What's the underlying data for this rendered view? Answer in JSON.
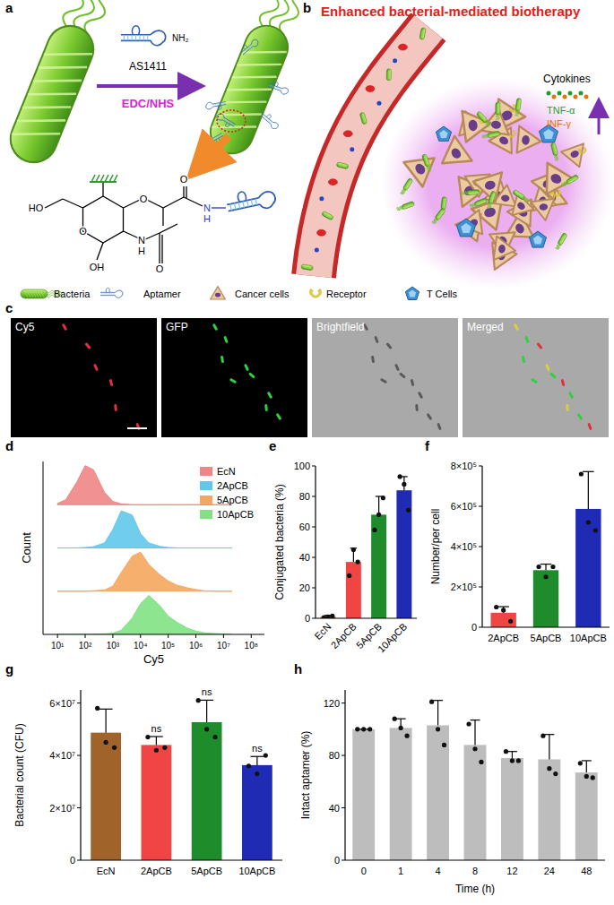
{
  "panel_labels": [
    "a",
    "b",
    "c",
    "d",
    "e",
    "f",
    "g",
    "h"
  ],
  "panel_a": {
    "aptamer_name": "AS1411",
    "amine": "NH₂",
    "reagent": "EDC/NHS",
    "structure_atoms": [
      "HO",
      "O",
      "OH",
      "N",
      "H",
      "O",
      "O",
      "O",
      "N",
      "H"
    ]
  },
  "icon_legend": [
    "Bacteria",
    "Aptamer",
    "Cancer cells",
    "Receptor",
    "T Cells"
  ],
  "panel_b": {
    "title": "Enhanced bacterial-mediated biotherapy",
    "cytokines_label": "Cytokines",
    "cytokines": [
      {
        "name": "TNF-α",
        "color": "#1f9e2c"
      },
      {
        "name": "INF-γ",
        "color": "#e5740b"
      }
    ]
  },
  "panel_c": {
    "channels": [
      "Cy5",
      "GFP",
      "Brightfield",
      "Merged"
    ]
  },
  "chart_data": [
    {
      "type": "area",
      "x_label": "Cy5",
      "y_label": "Count",
      "log": "x",
      "tick_labels": "x",
      "legend": "upper right",
      "xlim": [
        3,
        300000000
      ],
      "xticks": [
        {
          "value": 10,
          "label": "10¹"
        },
        {
          "value": 100,
          "label": "10²"
        },
        {
          "value": 1000,
          "label": "10³"
        },
        {
          "value": 10000,
          "label": "10⁴"
        },
        {
          "value": 100000,
          "label": "10⁵"
        },
        {
          "value": 1000000,
          "label": "10⁶"
        },
        {
          "value": 10000000,
          "label": "10⁷"
        },
        {
          "value": 100000000,
          "label": "10⁸"
        }
      ],
      "ylim": [
        0,
        100
      ],
      "x": [
        10,
        20,
        50,
        100,
        200,
        500,
        1000,
        2000,
        5000,
        10000,
        20000,
        50000,
        100000,
        200000,
        500000,
        1000000,
        2000000,
        5000000,
        10000000,
        20000000
      ],
      "series": [
        {
          "name": "EcN",
          "color": "#f08585",
          "values": [
            3,
            12,
            55,
            95,
            85,
            30,
            8,
            2,
            0,
            0,
            0,
            0,
            0,
            0,
            0,
            0,
            0,
            0,
            0,
            0
          ]
        },
        {
          "name": "2ApCB",
          "color": "#62c8ea",
          "values": [
            0,
            0,
            0,
            1,
            3,
            12,
            45,
            90,
            80,
            35,
            12,
            4,
            1,
            0,
            0,
            0,
            0,
            0,
            0,
            0
          ]
        },
        {
          "name": "5ApCB",
          "color": "#f6a65e",
          "values": [
            0,
            0,
            0,
            0,
            1,
            3,
            12,
            45,
            85,
            95,
            65,
            40,
            25,
            15,
            8,
            4,
            1,
            0,
            0,
            0
          ]
        },
        {
          "name": "10ApCB",
          "color": "#82e283",
          "values": [
            0,
            0,
            0,
            0,
            0,
            1,
            3,
            10,
            40,
            75,
            95,
            70,
            45,
            30,
            15,
            8,
            4,
            2,
            1,
            0
          ]
        }
      ]
    },
    {
      "type": "bar",
      "y_label": "Conjugated bacteria (%)",
      "categories": [
        "EcN",
        "2ApCB",
        "5ApCB",
        "10ApCB"
      ],
      "values": [
        1,
        37,
        68,
        84
      ],
      "errors": [
        1,
        9,
        12,
        9
      ],
      "replicates": [
        [
          0.5,
          1,
          1.5
        ],
        [
          28,
          45,
          37
        ],
        [
          58,
          68,
          79
        ],
        [
          93,
          88,
          71
        ]
      ],
      "colors": [
        "#b5651d",
        "#f04545",
        "#1e8c2a",
        "#1f2bb5"
      ],
      "ylim": [
        0,
        100
      ],
      "yticks": [
        0,
        20,
        40,
        60,
        80,
        100
      ]
    },
    {
      "type": "bar",
      "y_label": "Number/per cell",
      "categories": [
        "2ApCB",
        "5ApCB",
        "10ApCB"
      ],
      "values": [
        72000,
        283000,
        587000
      ],
      "errors": [
        30000,
        30000,
        185000
      ],
      "replicates": [
        [
          100000,
          85000,
          30000
        ],
        [
          300000,
          250000,
          300000
        ],
        [
          760000,
          520000,
          480000
        ]
      ],
      "colors": [
        "#f04545",
        "#1e8c2a",
        "#1f2bb5"
      ],
      "ylim": [
        0,
        800000
      ],
      "yticks": [
        0,
        {
          "value": 200000,
          "label": "2×10⁵"
        },
        {
          "value": 400000,
          "label": "4×10⁵"
        },
        {
          "value": 600000,
          "label": "6×10⁵"
        },
        {
          "value": 800000,
          "label": "8×10⁵"
        }
      ]
    },
    {
      "type": "bar",
      "y_label": "Bacterial count (CFU)",
      "categories": [
        "EcN",
        "2ApCB",
        "5ApCB",
        "10ApCB"
      ],
      "values": [
        48700000,
        44000000,
        52700000,
        36300000
      ],
      "errors": [
        9000000,
        3200000,
        8400000,
        3300000
      ],
      "replicates": [
        [
          58000000,
          45000000,
          43000000
        ],
        [
          47000000,
          42000000,
          43000000
        ],
        [
          61000000,
          50000000,
          47000000
        ],
        [
          36000000,
          33000000,
          40000000
        ]
      ],
      "colors": [
        "#a0632a",
        "#f04545",
        "#1e8c2a",
        "#1f2bb5"
      ],
      "ylim": [
        0,
        65000000
      ],
      "yticks": [
        0,
        {
          "value": 20000000,
          "label": "2×10⁷"
        },
        {
          "value": 40000000,
          "label": "4×10⁷"
        },
        {
          "value": 60000000,
          "label": "6×10⁷"
        }
      ],
      "annotations": [
        {
          "category": "2ApCB",
          "text": "ns"
        },
        {
          "category": "5ApCB",
          "text": "ns"
        },
        {
          "category": "10ApCB",
          "text": "ns"
        }
      ]
    },
    {
      "type": "bar",
      "y_label": "Intact aptamer (%)",
      "x_label": "Time (h)",
      "categories": [
        "0",
        "1",
        "4",
        "8",
        "12",
        "24",
        "48"
      ],
      "values": [
        100,
        101,
        103,
        88,
        78,
        77,
        67
      ],
      "errors": [
        0,
        7,
        19,
        19,
        5,
        19,
        9
      ],
      "replicates": [
        [
          100,
          100,
          100
        ],
        [
          108,
          101,
          95
        ],
        [
          121,
          100,
          88
        ],
        [
          104,
          85,
          75
        ],
        [
          83,
          76,
          76
        ],
        [
          95,
          70,
          66
        ],
        [
          74,
          64,
          63
        ]
      ],
      "color": "#bdbdbd",
      "ylim": [
        0,
        130
      ],
      "yticks": [
        0,
        40,
        80,
        120
      ]
    }
  ]
}
